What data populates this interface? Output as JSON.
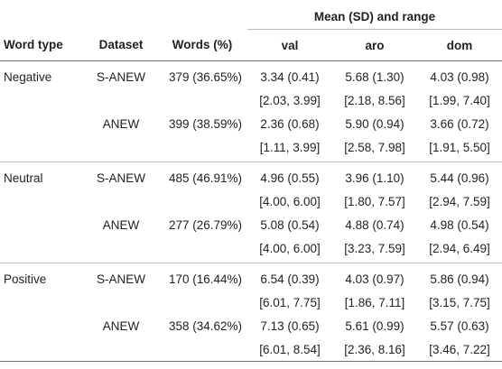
{
  "headers": {
    "word_type": "Word type",
    "dataset": "Dataset",
    "words": "Words (%)",
    "group": "Mean (SD) and range",
    "val": "val",
    "aro": "aro",
    "dom": "dom"
  },
  "rows": [
    {
      "type": "Negative",
      "dataset": "S-ANEW",
      "words": "379 (36.65%)",
      "val_mean": "3.34 (0.41)",
      "aro_mean": "5.68 (1.30)",
      "dom_mean": "4.03 (0.98)",
      "val_range": "[2.03, 3.99]",
      "aro_range": "[2.18, 8.56]",
      "dom_range": "[1.99, 7.40]"
    },
    {
      "type": "",
      "dataset": "ANEW",
      "words": "399 (38.59%)",
      "val_mean": "2.36 (0.68)",
      "aro_mean": "5.90 (0.94)",
      "dom_mean": "3.66 (0.72)",
      "val_range": "[1.11, 3.99]",
      "aro_range": "[2.58, 7.98]",
      "dom_range": "[1.91, 5.50]"
    },
    {
      "type": "Neutral",
      "dataset": "S-ANEW",
      "words": "485 (46.91%)",
      "val_mean": "4.96 (0.55)",
      "aro_mean": "3.96 (1.10)",
      "dom_mean": "5.44 (0.96)",
      "val_range": "[4.00, 6.00]",
      "aro_range": "[1.80, 7.57]",
      "dom_range": "[2.94, 7.59]"
    },
    {
      "type": "",
      "dataset": "ANEW",
      "words": "277 (26.79%)",
      "val_mean": "5.08 (0.54)",
      "aro_mean": "4.88 (0.74)",
      "dom_mean": "4.98 (0.54)",
      "val_range": "[4.00, 6.00]",
      "aro_range": "[3.23, 7.59]",
      "dom_range": "[2.94, 6.49]"
    },
    {
      "type": "Positive",
      "dataset": "S-ANEW",
      "words": "170 (16.44%)",
      "val_mean": "6.54 (0.39)",
      "aro_mean": "4.03 (0.97)",
      "dom_mean": "5.86 (0.94)",
      "val_range": "[6.01, 7.75]",
      "aro_range": "[1.86, 7.11]",
      "dom_range": "[3.15, 7.75]"
    },
    {
      "type": "",
      "dataset": "ANEW",
      "words": "358 (34.62%)",
      "val_mean": "7.13 (0.65)",
      "aro_mean": "5.61 (0.99)",
      "dom_mean": "5.57 (0.63)",
      "val_range": "[6.01, 8.54]",
      "aro_range": "[2.36, 8.16]",
      "dom_range": "[3.46, 7.22]"
    }
  ]
}
